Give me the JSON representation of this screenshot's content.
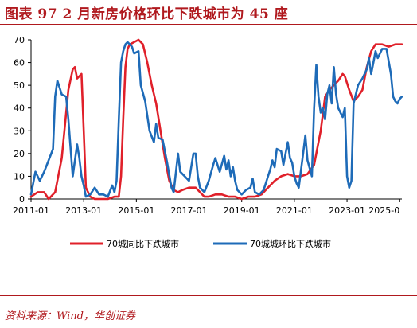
{
  "header": {
    "title": "图表 97   2 月新房价格环比下跌城市为 45 座"
  },
  "footer": {
    "source": "资料来源：Wind，华创证券"
  },
  "colors": {
    "title": "#b0191e",
    "series_yoy": "#e0202a",
    "series_mom": "#1e6bb8",
    "axis": "#000000"
  },
  "chart_data": {
    "type": "line",
    "title": "",
    "xlabel": "",
    "ylabel": "",
    "ylim": [
      0,
      70
    ],
    "yticks": [
      0,
      10,
      20,
      30,
      40,
      50,
      60,
      70
    ],
    "xlim": [
      "2011-01",
      "2025-02"
    ],
    "xtick_labels": [
      "2011-01",
      "2013-01",
      "2015-01",
      "2017-01",
      "2019-01",
      "2021-01",
      "2023-01",
      "2025-0"
    ],
    "grid": false,
    "legend": "bottom",
    "series": [
      {
        "name": "70城同比下跌城市",
        "color": "#e0202a",
        "points": [
          [
            "2011-01",
            1
          ],
          [
            "2011-04",
            3
          ],
          [
            "2011-07",
            3
          ],
          [
            "2011-09",
            0
          ],
          [
            "2011-12",
            3
          ],
          [
            "2012-03",
            18
          ],
          [
            "2012-06",
            48
          ],
          [
            "2012-08",
            57
          ],
          [
            "2012-09",
            58
          ],
          [
            "2012-10",
            53
          ],
          [
            "2012-12",
            55
          ],
          [
            "2013-01",
            30
          ],
          [
            "2013-02",
            5
          ],
          [
            "2013-04",
            1
          ],
          [
            "2013-06",
            0
          ],
          [
            "2013-09",
            0
          ],
          [
            "2013-12",
            0
          ],
          [
            "2014-03",
            1
          ],
          [
            "2014-05",
            1
          ],
          [
            "2014-06",
            10
          ],
          [
            "2014-07",
            35
          ],
          [
            "2014-08",
            58
          ],
          [
            "2014-09",
            66
          ],
          [
            "2014-10",
            68
          ],
          [
            "2014-12",
            69
          ],
          [
            "2015-02",
            70
          ],
          [
            "2015-04",
            68
          ],
          [
            "2015-06",
            60
          ],
          [
            "2015-08",
            50
          ],
          [
            "2015-10",
            42
          ],
          [
            "2015-12",
            30
          ],
          [
            "2016-02",
            18
          ],
          [
            "2016-04",
            8
          ],
          [
            "2016-06",
            4
          ],
          [
            "2016-08",
            3
          ],
          [
            "2016-10",
            4
          ],
          [
            "2017-01",
            5
          ],
          [
            "2017-04",
            5
          ],
          [
            "2017-06",
            3
          ],
          [
            "2017-08",
            1
          ],
          [
            "2017-10",
            1
          ],
          [
            "2018-01",
            2
          ],
          [
            "2018-04",
            2
          ],
          [
            "2018-07",
            1
          ],
          [
            "2018-10",
            1
          ],
          [
            "2019-01",
            0
          ],
          [
            "2019-04",
            1
          ],
          [
            "2019-07",
            1
          ],
          [
            "2019-10",
            2
          ],
          [
            "2020-01",
            5
          ],
          [
            "2020-04",
            8
          ],
          [
            "2020-07",
            10
          ],
          [
            "2020-10",
            11
          ],
          [
            "2021-01",
            10
          ],
          [
            "2021-04",
            10
          ],
          [
            "2021-07",
            11
          ],
          [
            "2021-10",
            15
          ],
          [
            "2022-01",
            30
          ],
          [
            "2022-03",
            45
          ],
          [
            "2022-05",
            48
          ],
          [
            "2022-07",
            50
          ],
          [
            "2022-09",
            52
          ],
          [
            "2022-11",
            55
          ],
          [
            "2022-12",
            54
          ],
          [
            "2023-02",
            48
          ],
          [
            "2023-04",
            43
          ],
          [
            "2023-06",
            45
          ],
          [
            "2023-08",
            48
          ],
          [
            "2023-10",
            58
          ],
          [
            "2023-12",
            65
          ],
          [
            "2024-02",
            68
          ],
          [
            "2024-05",
            68
          ],
          [
            "2024-08",
            67
          ],
          [
            "2024-11",
            68
          ],
          [
            "2025-02",
            68
          ]
        ]
      },
      {
        "name": "70城城环比下跌城市",
        "color": "#1e6bb8",
        "points": [
          [
            "2011-01",
            2
          ],
          [
            "2011-03",
            12
          ],
          [
            "2011-05",
            8
          ],
          [
            "2011-07",
            12
          ],
          [
            "2011-09",
            17
          ],
          [
            "2011-11",
            22
          ],
          [
            "2011-12",
            45
          ],
          [
            "2012-01",
            52
          ],
          [
            "2012-03",
            46
          ],
          [
            "2012-05",
            45
          ],
          [
            "2012-06",
            35
          ],
          [
            "2012-08",
            10
          ],
          [
            "2012-10",
            24
          ],
          [
            "2012-11",
            18
          ],
          [
            "2012-12",
            10
          ],
          [
            "2013-01",
            6
          ],
          [
            "2013-02",
            1
          ],
          [
            "2013-04",
            2
          ],
          [
            "2013-06",
            5
          ],
          [
            "2013-08",
            2
          ],
          [
            "2013-10",
            2
          ],
          [
            "2013-12",
            1
          ],
          [
            "2014-02",
            6
          ],
          [
            "2014-03",
            3
          ],
          [
            "2014-04",
            8
          ],
          [
            "2014-05",
            35
          ],
          [
            "2014-06",
            60
          ],
          [
            "2014-07",
            65
          ],
          [
            "2014-08",
            68
          ],
          [
            "2014-09",
            69
          ],
          [
            "2014-11",
            67
          ],
          [
            "2014-12",
            64
          ],
          [
            "2015-02",
            65
          ],
          [
            "2015-03",
            50
          ],
          [
            "2015-05",
            43
          ],
          [
            "2015-07",
            30
          ],
          [
            "2015-09",
            25
          ],
          [
            "2015-10",
            33
          ],
          [
            "2015-11",
            27
          ],
          [
            "2016-01",
            26
          ],
          [
            "2016-03",
            16
          ],
          [
            "2016-05",
            5
          ],
          [
            "2016-06",
            3
          ],
          [
            "2016-08",
            20
          ],
          [
            "2016-09",
            12
          ],
          [
            "2016-11",
            10
          ],
          [
            "2017-01",
            8
          ],
          [
            "2017-03",
            20
          ],
          [
            "2017-04",
            20
          ],
          [
            "2017-05",
            10
          ],
          [
            "2017-06",
            5
          ],
          [
            "2017-08",
            3
          ],
          [
            "2017-10",
            8
          ],
          [
            "2017-12",
            15
          ],
          [
            "2018-01",
            18
          ],
          [
            "2018-03",
            12
          ],
          [
            "2018-05",
            19
          ],
          [
            "2018-06",
            13
          ],
          [
            "2018-07",
            17
          ],
          [
            "2018-08",
            10
          ],
          [
            "2018-09",
            14
          ],
          [
            "2018-10",
            8
          ],
          [
            "2018-11",
            4
          ],
          [
            "2019-01",
            2
          ],
          [
            "2019-03",
            4
          ],
          [
            "2019-05",
            5
          ],
          [
            "2019-06",
            9
          ],
          [
            "2019-07",
            3
          ],
          [
            "2019-09",
            2
          ],
          [
            "2019-11",
            4
          ],
          [
            "2020-01",
            10
          ],
          [
            "2020-02",
            13
          ],
          [
            "2020-03",
            17
          ],
          [
            "2020-04",
            14
          ],
          [
            "2020-05",
            22
          ],
          [
            "2020-07",
            21
          ],
          [
            "2020-08",
            15
          ],
          [
            "2020-10",
            25
          ],
          [
            "2020-11",
            18
          ],
          [
            "2020-12",
            16
          ],
          [
            "2021-01",
            10
          ],
          [
            "2021-02",
            7
          ],
          [
            "2021-03",
            5
          ],
          [
            "2021-05",
            20
          ],
          [
            "2021-06",
            28
          ],
          [
            "2021-07",
            17
          ],
          [
            "2021-09",
            10
          ],
          [
            "2021-10",
            40
          ],
          [
            "2021-11",
            59
          ],
          [
            "2021-12",
            45
          ],
          [
            "2022-01",
            38
          ],
          [
            "2022-02",
            40
          ],
          [
            "2022-03",
            35
          ],
          [
            "2022-04",
            46
          ],
          [
            "2022-05",
            50
          ],
          [
            "2022-06",
            42
          ],
          [
            "2022-07",
            58
          ],
          [
            "2022-08",
            46
          ],
          [
            "2022-09",
            40
          ],
          [
            "2022-10",
            38
          ],
          [
            "2022-11",
            36
          ],
          [
            "2022-12",
            40
          ],
          [
            "2023-01",
            10
          ],
          [
            "2023-02",
            5
          ],
          [
            "2023-03",
            8
          ],
          [
            "2023-04",
            42
          ],
          [
            "2023-06",
            50
          ],
          [
            "2023-08",
            53
          ],
          [
            "2023-10",
            57
          ],
          [
            "2023-11",
            62
          ],
          [
            "2023-12",
            55
          ],
          [
            "2024-01",
            60
          ],
          [
            "2024-02",
            65
          ],
          [
            "2024-03",
            62
          ],
          [
            "2024-05",
            66
          ],
          [
            "2024-07",
            66
          ],
          [
            "2024-09",
            55
          ],
          [
            "2024-10",
            45
          ],
          [
            "2024-11",
            43
          ],
          [
            "2024-12",
            42
          ],
          [
            "2025-01",
            44
          ],
          [
            "2025-02",
            45
          ]
        ]
      }
    ]
  }
}
